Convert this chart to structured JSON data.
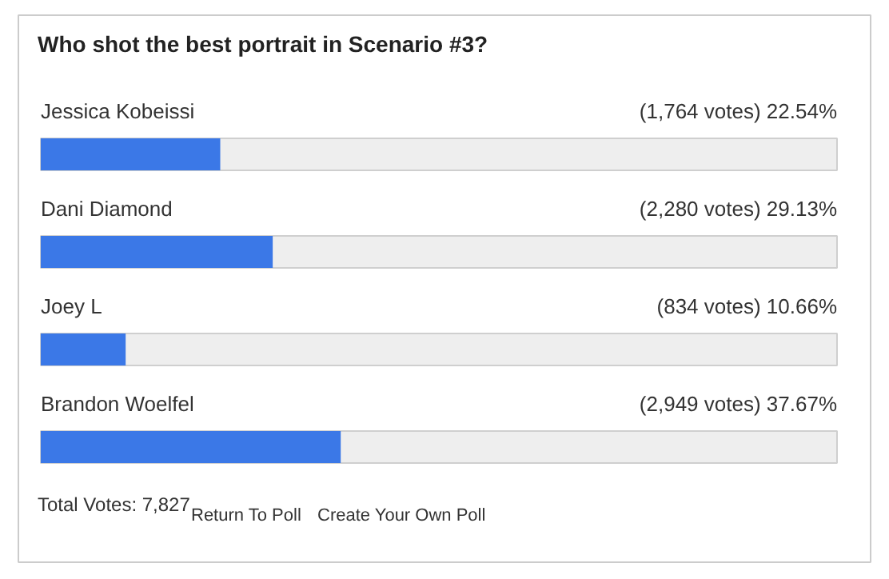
{
  "chart_data": {
    "type": "bar",
    "orientation": "horizontal",
    "title": "Who shot the best portrait in Scenario #3?",
    "categories": [
      "Jessica Kobeissi",
      "Dani Diamond",
      "Joey L",
      "Brandon Woelfel"
    ],
    "values": [
      22.54,
      29.13,
      10.66,
      37.67
    ],
    "value_labels": [
      "(1,764 votes) 22.54%",
      "(2,280 votes) 29.13%",
      "(834 votes) 10.66%",
      "(2,949 votes) 37.67%"
    ],
    "color": "#3b78e7",
    "xlim": [
      0,
      100
    ],
    "tick_labels": false,
    "annotations": [
      "Total Votes: 7,827",
      "Return To Poll",
      "Create Your Own Poll"
    ]
  }
}
